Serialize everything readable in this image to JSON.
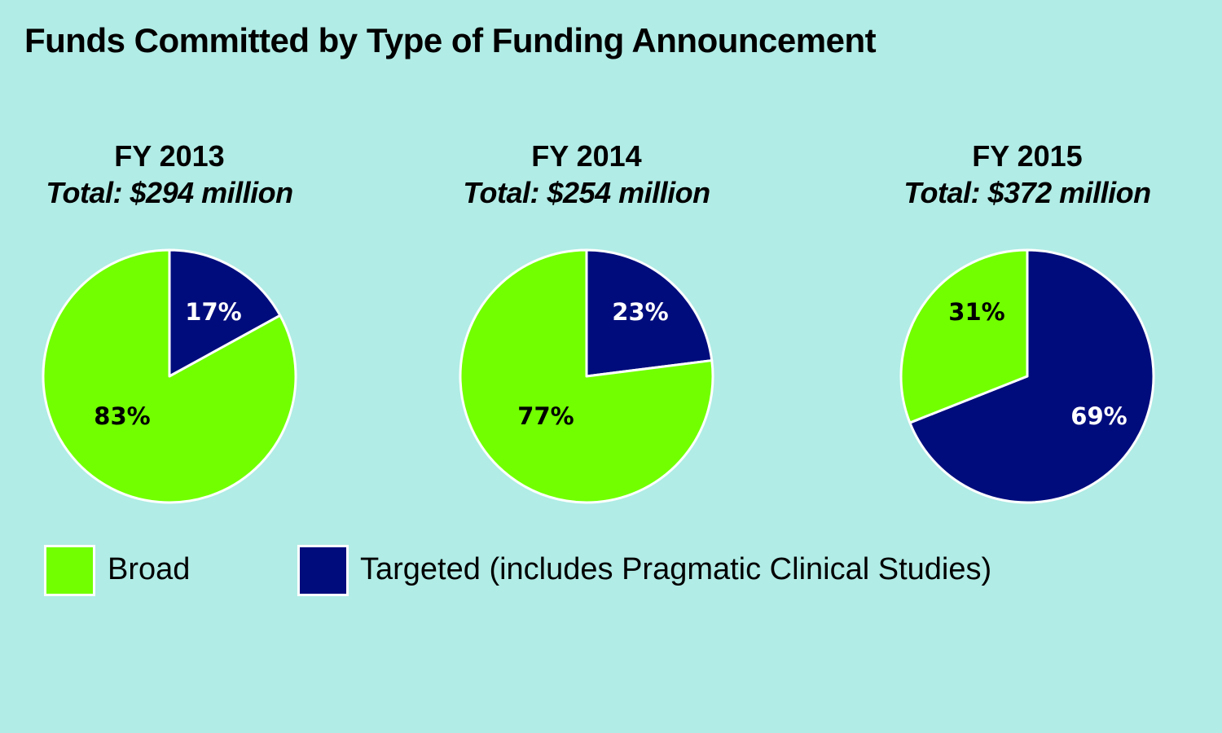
{
  "colors": {
    "background": "#b1ece6",
    "broad": "#72ff00",
    "targeted": "#000c7c",
    "stroke": "#ffffff"
  },
  "chart_data": {
    "type": "pie",
    "title": "Funds Committed by Type of Funding Announcement",
    "legend": {
      "position": "bottom-left",
      "entries": [
        "Broad",
        "Targeted (includes Pragmatic Clinical Studies)"
      ]
    },
    "charts": [
      {
        "year_label": "FY 2013",
        "total_label": "Total: $294 million",
        "slices": [
          {
            "name": "Targeted (includes Pragmatic Clinical Studies)",
            "value": 17,
            "label": "17%"
          },
          {
            "name": "Broad",
            "value": 83,
            "label": "83%"
          }
        ]
      },
      {
        "year_label": "FY 2014",
        "total_label": "Total: $254 million",
        "slices": [
          {
            "name": "Targeted (includes Pragmatic Clinical Studies)",
            "value": 23,
            "label": "23%"
          },
          {
            "name": "Broad",
            "value": 77,
            "label": "77%"
          }
        ]
      },
      {
        "year_label": "FY 2015",
        "total_label": "Total: $372 million",
        "slices": [
          {
            "name": "Targeted (includes Pragmatic Clinical Studies)",
            "value": 69,
            "label": "69%"
          },
          {
            "name": "Broad",
            "value": 31,
            "label": "31%"
          }
        ]
      }
    ]
  }
}
